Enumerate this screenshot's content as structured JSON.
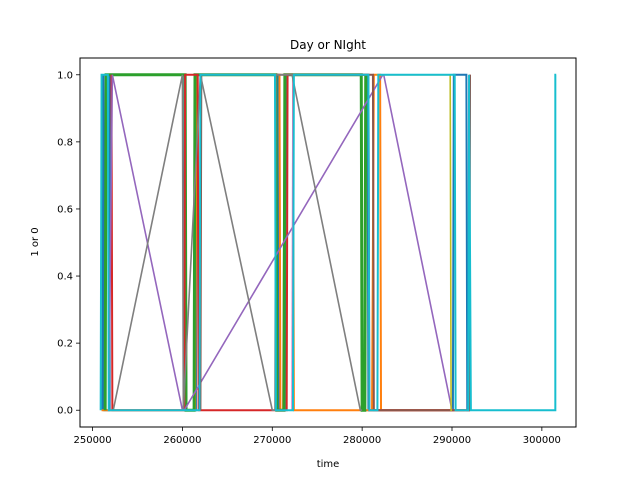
{
  "chart_data": {
    "type": "line",
    "title": "Day or NIght",
    "xlabel": "time",
    "ylabel": "1 or 0",
    "xlim": [
      248600,
      303800
    ],
    "ylim": [
      -0.05,
      1.05
    ],
    "x_ticks": [
      250000,
      260000,
      270000,
      280000,
      290000,
      300000
    ],
    "x_tick_labels": [
      "250000",
      "260000",
      "270000",
      "280000",
      "290000",
      "300000"
    ],
    "y_ticks": [
      0.0,
      0.2,
      0.4,
      0.6,
      0.8,
      1.0
    ],
    "y_tick_labels": [
      "0.0",
      "0.2",
      "0.4",
      "0.6",
      "0.8",
      "1.0"
    ],
    "grid": false,
    "legend": "none",
    "series": [
      {
        "color": "#1f77b4",
        "width": 2,
        "x": [
          251100,
          251200,
          251300,
          251900,
          251900,
          252000,
          260200,
          260300,
          261500,
          261600,
          270600,
          270700,
          271400,
          271500,
          280600,
          280700,
          290100,
          290200,
          291600,
          291700,
          292000
        ],
        "y": [
          0,
          1,
          0,
          0,
          1,
          1,
          1,
          0,
          0,
          1,
          1,
          0,
          0,
          1,
          1,
          0,
          0,
          1,
          1,
          0,
          0
        ]
      },
      {
        "color": "#ff7f0e",
        "width": 2,
        "x": [
          251000,
          252300,
          260300,
          260400,
          261400,
          261600,
          261700,
          270800,
          270900,
          271200,
          271400,
          272300,
          272400,
          280400,
          280500,
          281100,
          281300,
          282000,
          282100,
          291000,
          291200,
          291300,
          291400
        ],
        "y": [
          0,
          0,
          0,
          0,
          0,
          1,
          1,
          1,
          0,
          0,
          1,
          1,
          0,
          0,
          0,
          0,
          1,
          1,
          0,
          0,
          0,
          0,
          0
        ]
      },
      {
        "color": "#2ca02c",
        "width": 3,
        "x": [
          251400,
          251500,
          252000,
          252100,
          260300,
          260400,
          261300,
          261400,
          270400,
          270500,
          271300,
          271400,
          279900,
          280000,
          280300,
          280400
        ],
        "y": [
          0,
          1,
          1,
          1,
          1,
          0,
          0,
          1,
          1,
          0,
          0,
          1,
          1,
          0,
          0,
          1
        ]
      },
      {
        "color": "#d62728",
        "width": 2,
        "x": [
          252100,
          252200,
          260200,
          260300,
          261700,
          261800,
          271600,
          271700,
          280700,
          280800,
          291900,
          292000
        ],
        "y": [
          1,
          0,
          0,
          1,
          1,
          0,
          0,
          1,
          1,
          0,
          0,
          1
        ]
      },
      {
        "color": "#9467bd",
        "width": 1.6,
        "x": [
          251800,
          252200,
          260000,
          260200,
          282300,
          282400,
          290000,
          290200
        ],
        "y": [
          0,
          1,
          0,
          0,
          1,
          1,
          0,
          0
        ]
      },
      {
        "color": "#8c564b",
        "width": 2,
        "x": [
          262000,
          262100,
          262200,
          281100,
          281200,
          281300,
          291900,
          292000
        ],
        "y": [
          0,
          1,
          1,
          1,
          1,
          0,
          0,
          1
        ]
      },
      {
        "color": "#e377c2",
        "width": 1.6,
        "x": [
          272200,
          272300
        ],
        "y": [
          0,
          1
        ]
      },
      {
        "color": "#7f7f7f",
        "width": 1.6,
        "x": [
          252300,
          260000,
          260100,
          262000,
          270000,
          270300,
          270400,
          272200,
          279800,
          280000
        ],
        "y": [
          0,
          1,
          0,
          1,
          0,
          0,
          1,
          1,
          0,
          0
        ]
      },
      {
        "color": "#bcbd22",
        "width": 1.6,
        "x": [
          281600,
          289800,
          289900,
          290000
        ],
        "y": [
          1,
          1,
          0,
          0
        ]
      },
      {
        "color": "#17becf",
        "width": 2,
        "x": [
          250900,
          251000,
          251100,
          251700,
          251800,
          261900,
          262000,
          262100,
          270300,
          270400,
          272300,
          272400,
          280700,
          280800,
          281700,
          281800,
          290300,
          290400,
          291800,
          291900,
          292100,
          301500,
          301500,
          301600
        ],
        "y": [
          0,
          1,
          1,
          1,
          0,
          0,
          1,
          1,
          1,
          0,
          0,
          1,
          1,
          0,
          0,
          1,
          1,
          0,
          0,
          1,
          0,
          0,
          1,
          1
        ]
      }
    ]
  }
}
